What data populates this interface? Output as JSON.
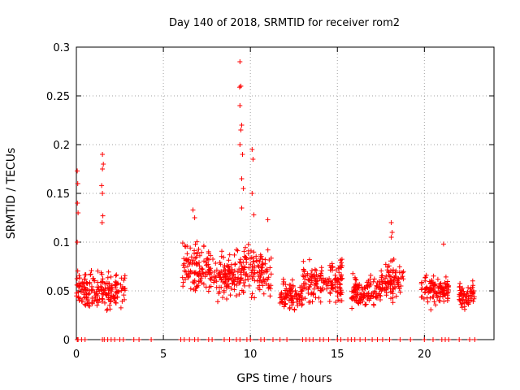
{
  "chart_data": {
    "type": "scatter",
    "title": "Day 140 of 2018, SRMTID for receiver rom2",
    "xlabel": "GPS time / hours",
    "ylabel": "SRMTID / TECUs",
    "xlim": [
      0,
      24
    ],
    "ylim": [
      0,
      0.3
    ],
    "xticks": [
      0,
      5,
      10,
      15,
      20
    ],
    "xtick_labels": [
      "0",
      "5",
      "10",
      "15",
      "20"
    ],
    "yticks": [
      0,
      0.05,
      0.1,
      0.15,
      0.2,
      0.25,
      0.3
    ],
    "ytick_labels": [
      "0",
      "0.05",
      "0.1",
      "0.15",
      "0.2",
      "0.25",
      "0.3"
    ],
    "grid": true,
    "marker": "+",
    "series": [
      {
        "name": "SRMTID",
        "color": "#ff0000",
        "clusters": [
          {
            "x": [
              0.0,
              2.8
            ],
            "center": 0.05,
            "spread": 0.018
          },
          {
            "x": [
              6.1,
              7.6
            ],
            "center": 0.075,
            "spread": 0.025
          },
          {
            "x": [
              7.6,
              9.2
            ],
            "center": 0.065,
            "spread": 0.022
          },
          {
            "x": [
              9.2,
              11.2
            ],
            "center": 0.07,
            "spread": 0.025
          },
          {
            "x": [
              11.7,
              13.0
            ],
            "center": 0.045,
            "spread": 0.015
          },
          {
            "x": [
              13.0,
              15.3
            ],
            "center": 0.06,
            "spread": 0.02
          },
          {
            "x": [
              15.8,
              17.5
            ],
            "center": 0.05,
            "spread": 0.015
          },
          {
            "x": [
              17.5,
              18.8
            ],
            "center": 0.06,
            "spread": 0.02
          },
          {
            "x": [
              19.8,
              21.4
            ],
            "center": 0.05,
            "spread": 0.015
          },
          {
            "x": [
              22.0,
              22.9
            ],
            "center": 0.045,
            "spread": 0.012
          }
        ],
        "highlights": [
          {
            "x": 0.05,
            "y": 0.173
          },
          {
            "x": 0.08,
            "y": 0.16
          },
          {
            "x": 0.06,
            "y": 0.14
          },
          {
            "x": 0.1,
            "y": 0.13
          },
          {
            "x": 0.05,
            "y": 0.1
          },
          {
            "x": 1.5,
            "y": 0.19
          },
          {
            "x": 1.55,
            "y": 0.18
          },
          {
            "x": 1.5,
            "y": 0.175
          },
          {
            "x": 1.45,
            "y": 0.158
          },
          {
            "x": 1.5,
            "y": 0.15
          },
          {
            "x": 1.52,
            "y": 0.127
          },
          {
            "x": 1.48,
            "y": 0.12
          },
          {
            "x": 9.4,
            "y": 0.285
          },
          {
            "x": 9.45,
            "y": 0.26
          },
          {
            "x": 9.38,
            "y": 0.259
          },
          {
            "x": 9.4,
            "y": 0.24
          },
          {
            "x": 9.5,
            "y": 0.22
          },
          {
            "x": 9.45,
            "y": 0.215
          },
          {
            "x": 9.4,
            "y": 0.2
          },
          {
            "x": 9.55,
            "y": 0.19
          },
          {
            "x": 9.5,
            "y": 0.165
          },
          {
            "x": 9.6,
            "y": 0.155
          },
          {
            "x": 9.5,
            "y": 0.135
          },
          {
            "x": 10.1,
            "y": 0.195
          },
          {
            "x": 10.15,
            "y": 0.185
          },
          {
            "x": 10.1,
            "y": 0.15
          },
          {
            "x": 10.2,
            "y": 0.128
          },
          {
            "x": 11.0,
            "y": 0.123
          },
          {
            "x": 18.1,
            "y": 0.12
          },
          {
            "x": 18.15,
            "y": 0.11
          },
          {
            "x": 18.1,
            "y": 0.105
          },
          {
            "x": 21.1,
            "y": 0.098
          },
          {
            "x": 6.7,
            "y": 0.133
          },
          {
            "x": 6.8,
            "y": 0.125
          }
        ],
        "zero_points": [
          0.05,
          0.1,
          0.3,
          0.5,
          1.5,
          1.6,
          1.8,
          2.0,
          2.2,
          2.5,
          2.7,
          3.3,
          3.6,
          4.3,
          6.0,
          6.2,
          6.5,
          6.8,
          7.0,
          7.6,
          7.8,
          8.5,
          8.8,
          9.2,
          9.4,
          9.8,
          10.0,
          10.6,
          10.8,
          11.3,
          11.7,
          12.1,
          13.0,
          13.2,
          13.4,
          13.6,
          14.0,
          14.2,
          14.5,
          15.0,
          15.2,
          15.6,
          15.8,
          16.0,
          16.3,
          16.6,
          17.0,
          17.3,
          17.6,
          18.0,
          18.6,
          19.2,
          20.0,
          20.5,
          21.0,
          21.2,
          21.4,
          22.0,
          22.6,
          22.9
        ]
      }
    ]
  }
}
